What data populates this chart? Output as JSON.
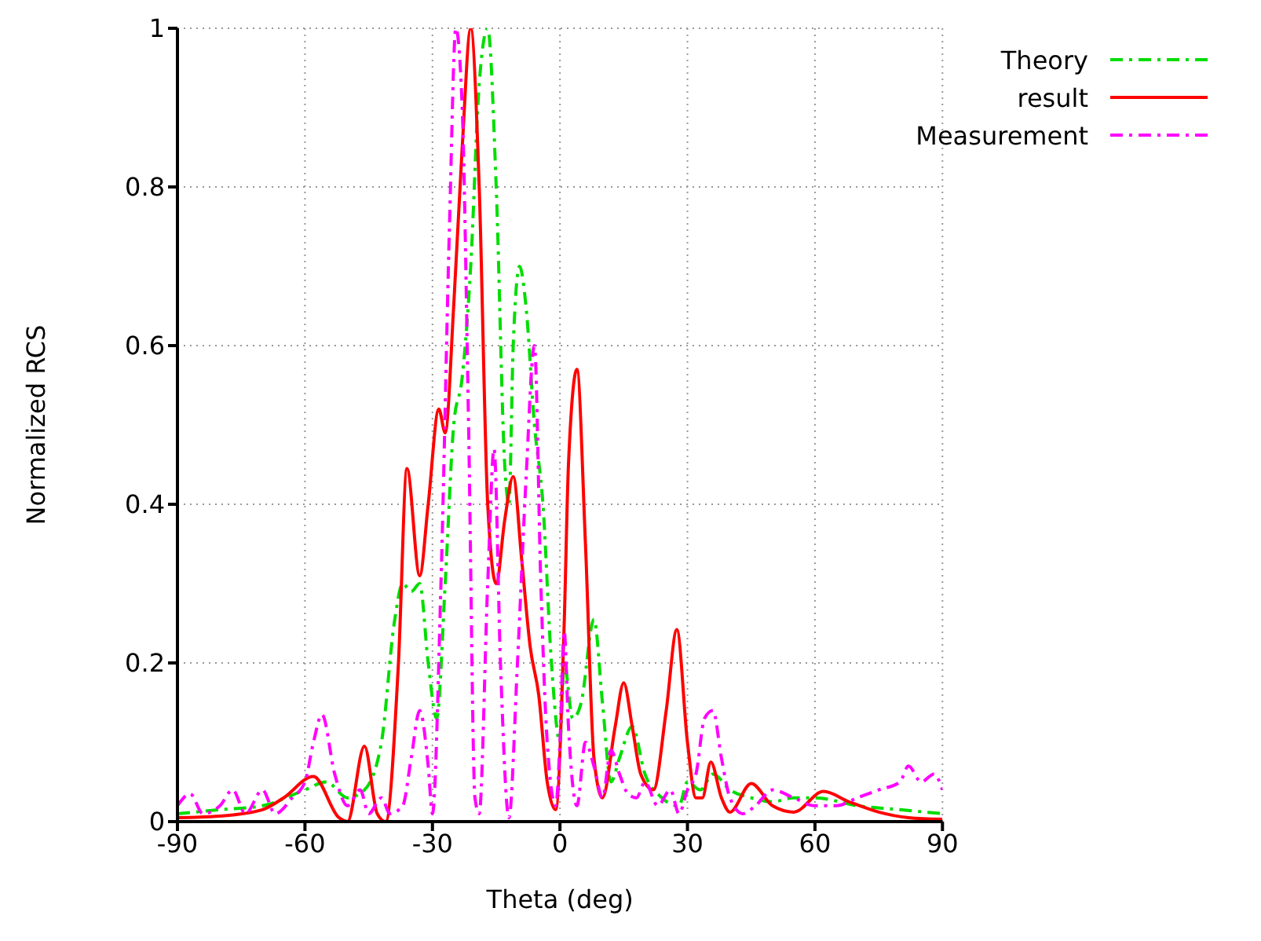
{
  "chart_data": {
    "type": "line",
    "xlabel": "Theta (deg)",
    "ylabel": "Normalized RCS",
    "xlim": [
      -90,
      90
    ],
    "xticks": [
      -90,
      -60,
      -30,
      0,
      30,
      60,
      90
    ],
    "ylim": [
      0,
      1
    ],
    "yticks": [
      0,
      0.2,
      0.4,
      0.6,
      0.8,
      1
    ],
    "grid": true,
    "legend": "top right",
    "marker": "none",
    "series": [
      {
        "name": "Theory",
        "color": "#00dd00",
        "line_style": "dashed",
        "x": [
          -90,
          -80,
          -70,
          -60,
          -55,
          -50,
          -46,
          -42,
          -39,
          -37,
          -35,
          -33,
          -31,
          -29,
          -27,
          -25,
          -23,
          -21,
          -19,
          -17,
          -15,
          -13,
          -12,
          -11,
          -9.5,
          -8,
          -6,
          -4,
          -2,
          0,
          1,
          3,
          5,
          8,
          10,
          12,
          14,
          17,
          20,
          24,
          28,
          30,
          33,
          36,
          40,
          45,
          50,
          55,
          60,
          70,
          80,
          90
        ],
        "values": [
          0.01,
          0.015,
          0.02,
          0.04,
          0.05,
          0.03,
          0.04,
          0.1,
          0.25,
          0.3,
          0.29,
          0.3,
          0.2,
          0.13,
          0.3,
          0.5,
          0.56,
          0.7,
          0.93,
          1.0,
          0.8,
          0.45,
          0.4,
          0.6,
          0.7,
          0.65,
          0.5,
          0.4,
          0.2,
          0.1,
          0.2,
          0.13,
          0.15,
          0.255,
          0.15,
          0.05,
          0.08,
          0.12,
          0.06,
          0.03,
          0.02,
          0.05,
          0.04,
          0.06,
          0.04,
          0.03,
          0.025,
          0.03,
          0.03,
          0.02,
          0.015,
          0.01
        ]
      },
      {
        "name": "result",
        "color": "#ff0000",
        "line_style": "solid",
        "x": [
          -90,
          -80,
          -70,
          -65,
          -58,
          -52,
          -50,
          -46,
          -43,
          -41,
          -38,
          -36,
          -33,
          -31,
          -28.5,
          -27,
          -25,
          -23,
          -21,
          -19,
          -17,
          -15,
          -13,
          -11,
          -9,
          -7,
          -5,
          -3,
          -1,
          1,
          2,
          4,
          6,
          8,
          10,
          13,
          15,
          17,
          19,
          22,
          25,
          27.5,
          30,
          32,
          33.5,
          35.5,
          38,
          40,
          45,
          50,
          55,
          62,
          68,
          75,
          82,
          90
        ],
        "values": [
          0.005,
          0.007,
          0.015,
          0.03,
          0.057,
          0.005,
          0,
          0.095,
          0.01,
          0,
          0.2,
          0.445,
          0.31,
          0.4,
          0.52,
          0.49,
          0.65,
          0.85,
          1.0,
          0.8,
          0.4,
          0.3,
          0.38,
          0.435,
          0.33,
          0.22,
          0.16,
          0.05,
          0.015,
          0.25,
          0.45,
          0.57,
          0.35,
          0.08,
          0.03,
          0.12,
          0.175,
          0.12,
          0.06,
          0.04,
          0.14,
          0.242,
          0.1,
          0.03,
          0.03,
          0.075,
          0.03,
          0.012,
          0.048,
          0.02,
          0.012,
          0.038,
          0.025,
          0.012,
          0.005,
          0.003
        ]
      },
      {
        "name": "Measurement",
        "color": "#ff00ff",
        "line_style": "dashed",
        "x": [
          -90,
          -87,
          -84,
          -80,
          -77,
          -74,
          -70,
          -67,
          -63,
          -60,
          -58,
          -56,
          -53,
          -50,
          -47,
          -45,
          -42,
          -40,
          -37,
          -35,
          -33,
          -31,
          -30,
          -28,
          -26,
          -24.5,
          -23,
          -21.5,
          -20,
          -19,
          -17,
          -15.5,
          -14,
          -12,
          -10,
          -8,
          -6,
          -4.5,
          -3,
          -1,
          0,
          1,
          2,
          4,
          6,
          8,
          10,
          12,
          14,
          16,
          18,
          20,
          23,
          26,
          28,
          30,
          32,
          34,
          36,
          38,
          40,
          43,
          46,
          50,
          55,
          60,
          65,
          70,
          75,
          80,
          82,
          85,
          88,
          90
        ],
        "values": [
          0.02,
          0.035,
          0.01,
          0.02,
          0.04,
          0.01,
          0.04,
          0.01,
          0.03,
          0.05,
          0.1,
          0.135,
          0.06,
          0.02,
          0.04,
          0.01,
          0.03,
          0.01,
          0.02,
          0.08,
          0.14,
          0.07,
          0.01,
          0.3,
          0.75,
          1.0,
          0.9,
          0.5,
          0.03,
          0.01,
          0.3,
          0.47,
          0.2,
          0.005,
          0.2,
          0.43,
          0.6,
          0.3,
          0.1,
          0.02,
          0.1,
          0.24,
          0.12,
          0.02,
          0.1,
          0.07,
          0.03,
          0.09,
          0.06,
          0.035,
          0.03,
          0.05,
          0.02,
          0.04,
          0.01,
          0.04,
          0.06,
          0.13,
          0.14,
          0.08,
          0.03,
          0.01,
          0.02,
          0.04,
          0.03,
          0.02,
          0.02,
          0.03,
          0.04,
          0.05,
          0.07,
          0.05,
          0.06,
          0.04
        ]
      }
    ]
  }
}
